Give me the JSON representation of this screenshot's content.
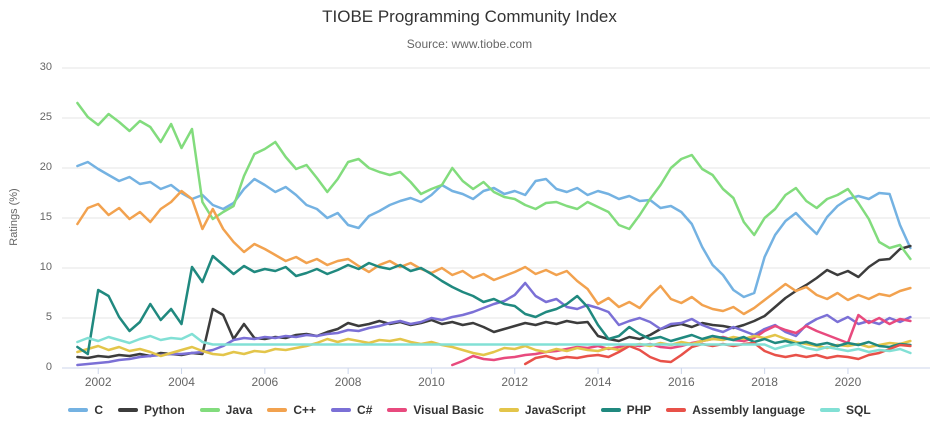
{
  "header": {
    "title": "TIOBE Programming Community Index",
    "subtitle": "Source: www.tiobe.com"
  },
  "y_axis": {
    "label": "Ratings (%)",
    "ticks": [
      0,
      5,
      10,
      15,
      20,
      25,
      30
    ],
    "min": 0,
    "max": 30
  },
  "x_axis": {
    "ticks": [
      2002,
      2004,
      2006,
      2008,
      2010,
      2012,
      2014,
      2016,
      2018,
      2020
    ],
    "min": 2001.13,
    "max": 2021.97
  },
  "colors": {
    "gridline": "#e6e6e6",
    "axis_line": "#ccd6eb",
    "title_text": "#333333",
    "tick_text": "#666666"
  },
  "chart_data": {
    "type": "line",
    "title": "TIOBE Programming Community Index",
    "subtitle": "Source: www.tiobe.com",
    "xlabel": "",
    "ylabel": "Ratings (%)",
    "ylim": [
      0,
      30
    ],
    "grid": "horizontal",
    "legend_position": "bottom",
    "x_start": 2001.5,
    "x_step": 0.25,
    "x_end": 2021.5,
    "series": [
      {
        "name": "C",
        "color": "#74b2e2",
        "values": [
          20.2,
          20.6,
          19.9,
          19.3,
          18.7,
          19.1,
          18.4,
          18.6,
          17.9,
          18.3,
          17.5,
          16.9,
          17.3,
          16.3,
          15.9,
          16.5,
          17.9,
          18.9,
          18.3,
          17.6,
          18.1,
          17.3,
          16.3,
          15.9,
          15.0,
          15.5,
          14.3,
          14.0,
          15.2,
          15.7,
          16.3,
          16.7,
          17.0,
          16.6,
          17.3,
          18.3,
          17.7,
          17.4,
          16.9,
          17.7,
          18.0,
          17.4,
          17.7,
          17.3,
          18.7,
          18.9,
          17.9,
          17.6,
          18.0,
          17.3,
          17.7,
          17.4,
          16.9,
          17.2,
          16.7,
          16.8,
          16.0,
          16.2,
          15.6,
          14.4,
          12.1,
          10.3,
          9.3,
          7.8,
          7.1,
          7.5,
          11.1,
          13.3,
          14.7,
          15.5,
          14.4,
          13.4,
          15.1,
          16.2,
          16.9,
          17.2,
          16.9,
          17.5,
          17.4,
          14.3,
          12.0
        ]
      },
      {
        "name": "Python",
        "color": "#3c3c3c",
        "values": [
          1.1,
          1.0,
          1.2,
          1.1,
          1.3,
          1.2,
          1.4,
          1.2,
          1.5,
          1.4,
          1.3,
          1.5,
          1.4,
          5.9,
          5.3,
          2.9,
          4.4,
          3.0,
          2.9,
          3.1,
          3.0,
          3.3,
          3.4,
          3.2,
          3.6,
          3.9,
          4.5,
          4.2,
          4.4,
          4.7,
          4.4,
          4.6,
          4.3,
          4.5,
          4.8,
          4.4,
          4.6,
          4.3,
          4.5,
          4.1,
          3.6,
          3.9,
          4.2,
          4.5,
          4.3,
          4.6,
          4.4,
          4.7,
          4.5,
          4.6,
          3.2,
          2.9,
          2.7,
          3.1,
          2.9,
          3.3,
          3.9,
          4.2,
          4.4,
          4.1,
          4.5,
          4.3,
          4.2,
          4.0,
          4.3,
          4.7,
          5.2,
          6.1,
          7.0,
          7.7,
          8.3,
          9.0,
          9.8,
          9.3,
          9.7,
          9.1,
          10.1,
          10.8,
          10.9,
          11.9,
          12.2
        ]
      },
      {
        "name": "Java",
        "color": "#82dc7d",
        "values": [
          26.5,
          25.1,
          24.3,
          25.4,
          24.6,
          23.7,
          24.7,
          24.1,
          22.6,
          24.4,
          22.0,
          23.9,
          16.6,
          14.9,
          15.6,
          16.2,
          19.2,
          21.4,
          21.9,
          22.6,
          21.1,
          19.9,
          20.3,
          19.0,
          17.6,
          18.9,
          20.6,
          20.9,
          20.0,
          19.6,
          19.3,
          19.6,
          18.6,
          17.4,
          17.9,
          18.3,
          20.0,
          18.7,
          17.9,
          18.6,
          17.6,
          17.1,
          16.9,
          16.3,
          15.9,
          16.5,
          16.6,
          16.2,
          15.9,
          16.6,
          16.1,
          15.6,
          14.3,
          13.9,
          15.3,
          16.9,
          18.3,
          20.0,
          20.9,
          21.3,
          19.9,
          19.3,
          17.9,
          17.0,
          14.6,
          13.3,
          15.0,
          15.9,
          17.3,
          18.0,
          16.7,
          16.0,
          16.9,
          17.3,
          17.9,
          16.5,
          14.9,
          12.6,
          12.0,
          12.3,
          10.9
        ]
      },
      {
        "name": "C++",
        "color": "#f2a24f",
        "values": [
          14.4,
          16.0,
          16.4,
          15.3,
          16.0,
          14.9,
          15.6,
          14.6,
          15.9,
          16.6,
          17.7,
          16.9,
          13.9,
          15.9,
          13.9,
          12.6,
          11.6,
          12.4,
          11.9,
          11.3,
          10.7,
          11.1,
          10.5,
          10.9,
          10.3,
          10.7,
          10.9,
          10.2,
          9.6,
          10.3,
          10.7,
          10.1,
          10.5,
          9.9,
          9.5,
          10.0,
          9.3,
          9.7,
          9.0,
          9.4,
          8.8,
          9.2,
          9.6,
          10.1,
          9.4,
          9.8,
          9.3,
          9.7,
          8.7,
          7.9,
          6.4,
          7.0,
          6.1,
          6.6,
          6.0,
          7.2,
          8.2,
          6.9,
          6.5,
          7.1,
          6.3,
          5.9,
          5.7,
          6.1,
          5.4,
          6.0,
          6.8,
          7.6,
          8.4,
          7.7,
          8.1,
          7.3,
          6.9,
          7.5,
          6.8,
          7.3,
          6.9,
          7.4,
          7.2,
          7.7,
          8.0
        ]
      },
      {
        "name": "C#",
        "color": "#7b70d6",
        "values": [
          0.3,
          0.4,
          0.5,
          0.6,
          0.8,
          0.9,
          1.1,
          1.2,
          1.3,
          1.4,
          1.4,
          1.5,
          1.6,
          1.8,
          2.2,
          2.8,
          3.0,
          2.9,
          3.1,
          3.0,
          3.2,
          3.1,
          3.3,
          3.2,
          3.4,
          3.5,
          3.8,
          3.7,
          4.0,
          4.2,
          4.5,
          4.7,
          4.4,
          4.6,
          5.0,
          4.8,
          5.1,
          5.3,
          5.6,
          6.0,
          6.4,
          6.7,
          7.3,
          8.5,
          7.2,
          6.6,
          6.9,
          6.1,
          5.9,
          6.3,
          6.0,
          5.6,
          4.3,
          4.7,
          5.0,
          4.6,
          3.9,
          4.4,
          4.5,
          4.9,
          4.3,
          3.9,
          3.6,
          4.1,
          3.7,
          3.3,
          3.9,
          4.3,
          3.6,
          3.2,
          4.3,
          4.9,
          5.3,
          4.6,
          5.1,
          4.4,
          4.7,
          4.4,
          5.0,
          4.6,
          5.1
        ]
      },
      {
        "name": "Visual Basic",
        "color": "#e84a7e",
        "values": [
          null,
          null,
          null,
          null,
          null,
          null,
          null,
          null,
          null,
          null,
          null,
          null,
          null,
          null,
          null,
          null,
          null,
          null,
          null,
          null,
          null,
          null,
          null,
          null,
          null,
          null,
          null,
          null,
          null,
          null,
          null,
          null,
          null,
          null,
          null,
          null,
          0.3,
          0.7,
          1.2,
          0.9,
          0.8,
          1.0,
          1.1,
          1.3,
          1.4,
          1.6,
          1.7,
          1.9,
          2.1,
          2.0,
          2.2,
          1.9,
          2.1,
          2.3,
          2.2,
          2.4,
          2.1,
          2.0,
          2.2,
          2.5,
          2.7,
          2.9,
          3.1,
          2.8,
          2.7,
          3.0,
          3.7,
          4.2,
          3.8,
          3.5,
          4.2,
          3.7,
          3.3,
          2.9,
          2.5,
          5.3,
          4.5,
          5.0,
          4.4,
          4.9,
          4.7
        ]
      },
      {
        "name": "JavaScript",
        "color": "#e3c54a",
        "values": [
          1.6,
          1.9,
          2.2,
          1.8,
          2.1,
          1.7,
          1.9,
          1.6,
          1.2,
          1.5,
          1.8,
          2.1,
          1.7,
          1.4,
          1.3,
          1.6,
          1.4,
          1.7,
          1.6,
          1.9,
          1.8,
          2.0,
          2.2,
          2.5,
          2.9,
          2.6,
          2.9,
          2.7,
          2.5,
          2.8,
          2.7,
          2.9,
          2.6,
          2.4,
          2.6,
          2.3,
          2.1,
          1.8,
          1.5,
          1.3,
          1.6,
          2.0,
          1.9,
          2.2,
          1.8,
          1.6,
          1.9,
          1.7,
          2.0,
          1.8,
          1.7,
          2.0,
          1.8,
          2.2,
          2.4,
          2.2,
          2.5,
          2.3,
          2.6,
          2.4,
          2.7,
          2.9,
          2.8,
          3.1,
          2.9,
          3.2,
          3.0,
          3.3,
          2.9,
          2.6,
          2.4,
          2.2,
          2.0,
          2.3,
          2.2,
          2.4,
          2.1,
          2.3,
          2.5,
          2.4,
          2.7
        ]
      },
      {
        "name": "PHP",
        "color": "#20897f",
        "values": [
          2.1,
          1.4,
          7.8,
          7.2,
          5.1,
          3.7,
          4.6,
          6.4,
          4.8,
          5.9,
          4.4,
          10.1,
          8.6,
          11.2,
          10.3,
          9.4,
          10.2,
          9.6,
          9.9,
          9.7,
          10.1,
          9.2,
          9.5,
          9.9,
          9.4,
          9.8,
          10.3,
          9.9,
          10.5,
          10.1,
          9.9,
          10.3,
          9.7,
          10.0,
          9.4,
          8.7,
          8.1,
          7.6,
          7.2,
          6.6,
          6.9,
          6.4,
          6.2,
          5.4,
          5.1,
          5.6,
          5.9,
          6.4,
          7.2,
          6.1,
          4.3,
          2.9,
          3.2,
          4.1,
          3.4,
          2.9,
          3.1,
          2.7,
          3.0,
          3.3,
          2.9,
          3.2,
          3.0,
          2.8,
          3.1,
          2.6,
          2.9,
          2.5,
          2.7,
          2.4,
          2.6,
          2.3,
          2.5,
          2.2,
          2.5,
          2.3,
          2.6,
          2.2,
          2.1,
          2.4,
          2.3
        ]
      },
      {
        "name": "Assembly language",
        "color": "#e85149",
        "values": [
          null,
          null,
          null,
          null,
          null,
          null,
          null,
          null,
          null,
          null,
          null,
          null,
          null,
          null,
          null,
          null,
          null,
          null,
          null,
          null,
          null,
          null,
          null,
          null,
          null,
          null,
          null,
          null,
          null,
          null,
          null,
          null,
          null,
          null,
          null,
          null,
          null,
          null,
          null,
          null,
          null,
          null,
          null,
          0.4,
          1.0,
          1.2,
          0.9,
          1.1,
          1.0,
          1.2,
          1.3,
          1.1,
          1.6,
          2.2,
          1.8,
          1.1,
          0.7,
          0.6,
          1.3,
          2.1,
          2.4,
          2.2,
          2.4,
          2.2,
          2.4,
          2.5,
          1.7,
          1.3,
          1.1,
          1.3,
          1.1,
          1.3,
          1.0,
          1.2,
          1.1,
          0.9,
          1.3,
          1.5,
          1.9,
          2.3,
          2.2
        ]
      },
      {
        "name": "SQL",
        "color": "#82e0d5",
        "values": [
          2.6,
          3.0,
          2.7,
          3.1,
          2.8,
          2.5,
          2.9,
          3.2,
          2.8,
          3.0,
          2.9,
          3.4,
          2.6,
          2.35,
          2.35,
          2.35,
          2.35,
          2.35,
          2.35,
          2.35,
          2.35,
          2.35,
          2.35,
          2.35,
          2.35,
          2.35,
          2.35,
          2.35,
          2.35,
          2.35,
          2.35,
          2.35,
          2.35,
          2.35,
          2.35,
          2.35,
          2.35,
          2.35,
          2.35,
          2.35,
          2.35,
          2.35,
          2.35,
          2.35,
          2.35,
          2.35,
          2.35,
          2.35,
          2.35,
          2.35,
          2.35,
          2.35,
          2.35,
          2.35,
          2.35,
          2.35,
          2.35,
          2.35,
          2.35,
          2.35,
          2.35,
          2.35,
          2.35,
          2.35,
          2.35,
          2.35,
          2.35,
          1.9,
          2.2,
          2.4,
          2.0,
          1.8,
          2.1,
          1.9,
          1.7,
          1.9,
          1.6,
          1.8,
          1.7,
          1.9,
          1.5
        ]
      }
    ]
  }
}
